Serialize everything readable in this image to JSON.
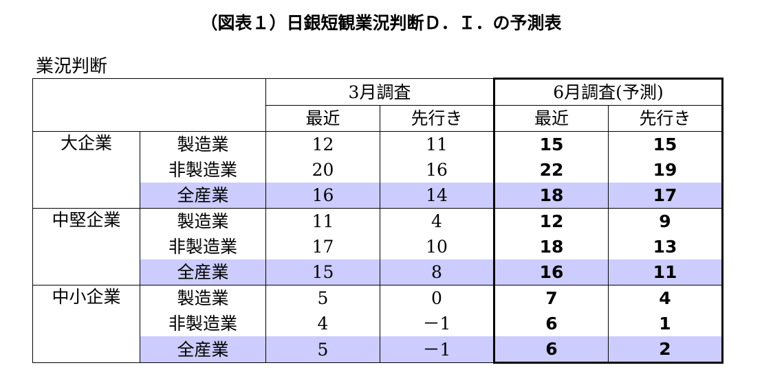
{
  "title": "（図表１）日銀短観業況判断Ｄ．Ｉ．の予測表",
  "caption": "業況判断",
  "headers": {
    "march": "3月調査",
    "june": "6月調査(予測)",
    "recent": "最近",
    "outlook": "先行き"
  },
  "groups": [
    {
      "name": "大企業",
      "rows": [
        {
          "sector": "製造業",
          "mar_recent": "12",
          "mar_outlook": "11",
          "jun_recent": "15",
          "jun_outlook": "15"
        },
        {
          "sector": "非製造業",
          "mar_recent": "20",
          "mar_outlook": "16",
          "jun_recent": "22",
          "jun_outlook": "19"
        },
        {
          "sector": "全産業",
          "mar_recent": "16",
          "mar_outlook": "14",
          "jun_recent": "18",
          "jun_outlook": "17"
        }
      ]
    },
    {
      "name": "中堅企業",
      "rows": [
        {
          "sector": "製造業",
          "mar_recent": "11",
          "mar_outlook": "4",
          "jun_recent": "12",
          "jun_outlook": "9"
        },
        {
          "sector": "非製造業",
          "mar_recent": "17",
          "mar_outlook": "10",
          "jun_recent": "18",
          "jun_outlook": "13"
        },
        {
          "sector": "全産業",
          "mar_recent": "15",
          "mar_outlook": "8",
          "jun_recent": "16",
          "jun_outlook": "11"
        }
      ]
    },
    {
      "name": "中小企業",
      "rows": [
        {
          "sector": "製造業",
          "mar_recent": "5",
          "mar_outlook": "0",
          "jun_recent": "7",
          "jun_outlook": "4"
        },
        {
          "sector": "非製造業",
          "mar_recent": "4",
          "mar_outlook": "－1",
          "jun_recent": "6",
          "jun_outlook": "1"
        },
        {
          "sector": "全産業",
          "mar_recent": "5",
          "mar_outlook": "－1",
          "jun_recent": "6",
          "jun_outlook": "2"
        }
      ]
    }
  ],
  "colors": {
    "highlight_row": "#ccccff",
    "border": "#000000"
  }
}
